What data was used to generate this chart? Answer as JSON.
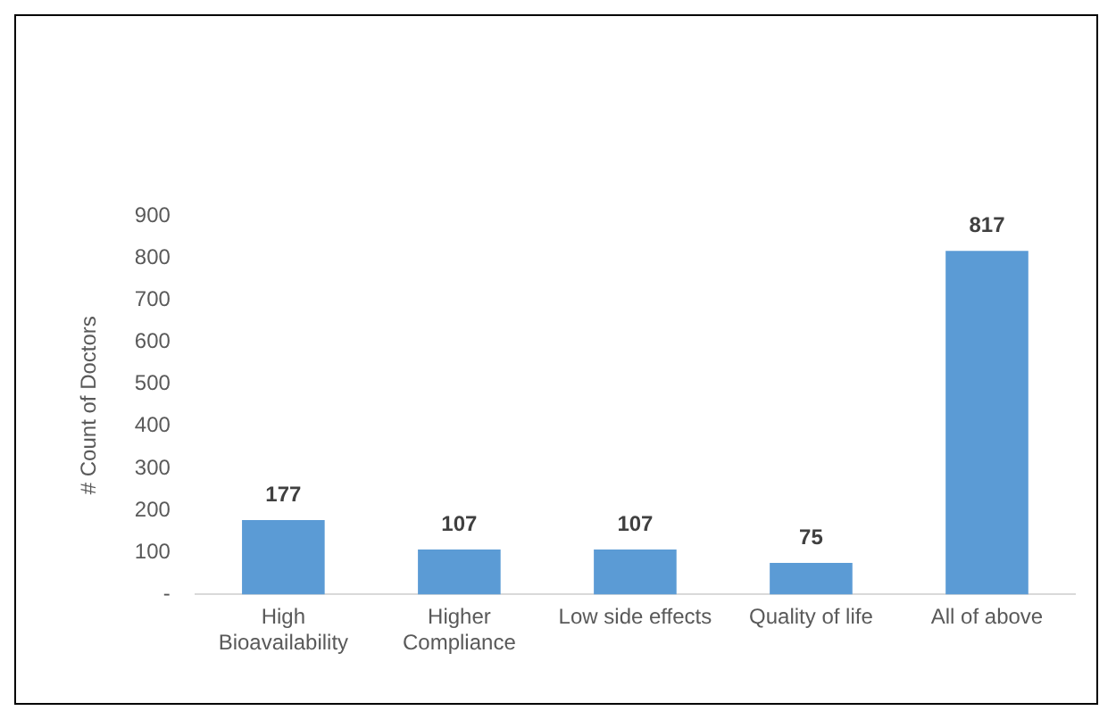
{
  "chart_data": {
    "type": "bar",
    "ylabel": "# Count of Doctors",
    "categories": [
      "High Bioavailability",
      "Higher Compliance",
      "Low side effects",
      "Quality of life",
      "All of above"
    ],
    "values": [
      177,
      107,
      107,
      75,
      817
    ],
    "color": "#5b9bd5",
    "ylim": [
      0,
      900
    ],
    "yticks": [
      {
        "value": 0,
        "label": "-"
      },
      100,
      200,
      300,
      400,
      500,
      600,
      700,
      800,
      900
    ],
    "grid": false,
    "legend": false,
    "data_labels": true
  }
}
